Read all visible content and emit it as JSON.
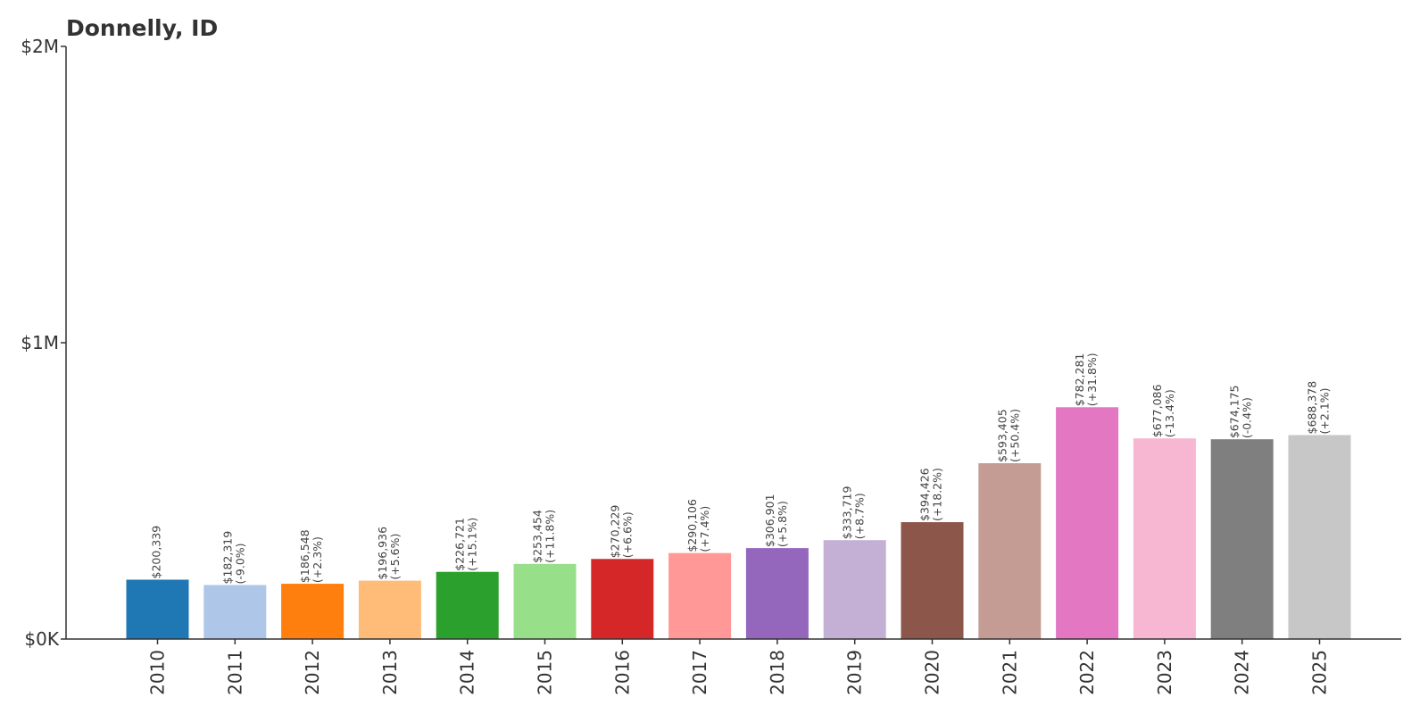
{
  "chart_data": {
    "type": "bar",
    "title": "Donnelly, ID",
    "xlabel": "",
    "ylabel": "",
    "ylim": [
      0,
      2000000
    ],
    "grid": false,
    "yticks": [
      {
        "value": 0,
        "label": "$0K"
      },
      {
        "value": 1000000,
        "label": "$1M"
      },
      {
        "value": 2000000,
        "label": "$2M"
      }
    ],
    "categories": [
      "2010",
      "2011",
      "2012",
      "2013",
      "2014",
      "2015",
      "2016",
      "2017",
      "2018",
      "2019",
      "2020",
      "2021",
      "2022",
      "2023",
      "2024",
      "2025"
    ],
    "values": [
      200339,
      182319,
      186548,
      196936,
      226721,
      253454,
      270229,
      290106,
      306901,
      333719,
      394426,
      593405,
      782281,
      677086,
      674175,
      688378
    ],
    "value_labels": [
      "$200,339",
      "$182,319",
      "$186,548",
      "$196,936",
      "$226,721",
      "$253,454",
      "$270,229",
      "$290,106",
      "$306,901",
      "$333,719",
      "$394,426",
      "$593,405",
      "$782,281",
      "$677,086",
      "$674,175",
      "$688,378"
    ],
    "change_labels": [
      "",
      "(-9.0%)",
      "(+2.3%)",
      "(+5.6%)",
      "(+15.1%)",
      "(+11.8%)",
      "(+6.6%)",
      "(+7.4%)",
      "(+5.8%)",
      "(+8.7%)",
      "(+18.2%)",
      "(+50.4%)",
      "(+31.8%)",
      "(-13.4%)",
      "(-0.4%)",
      "(+2.1%)"
    ],
    "colors": [
      "#1f77b4",
      "#aec7e8",
      "#ff7f0e",
      "#ffbb78",
      "#2ca02c",
      "#98df8a",
      "#d62728",
      "#ff9896",
      "#9467bd",
      "#c5b0d5",
      "#8c564b",
      "#c49c94",
      "#e377c2",
      "#f7b6d2",
      "#7f7f7f",
      "#c7c7c7"
    ]
  }
}
